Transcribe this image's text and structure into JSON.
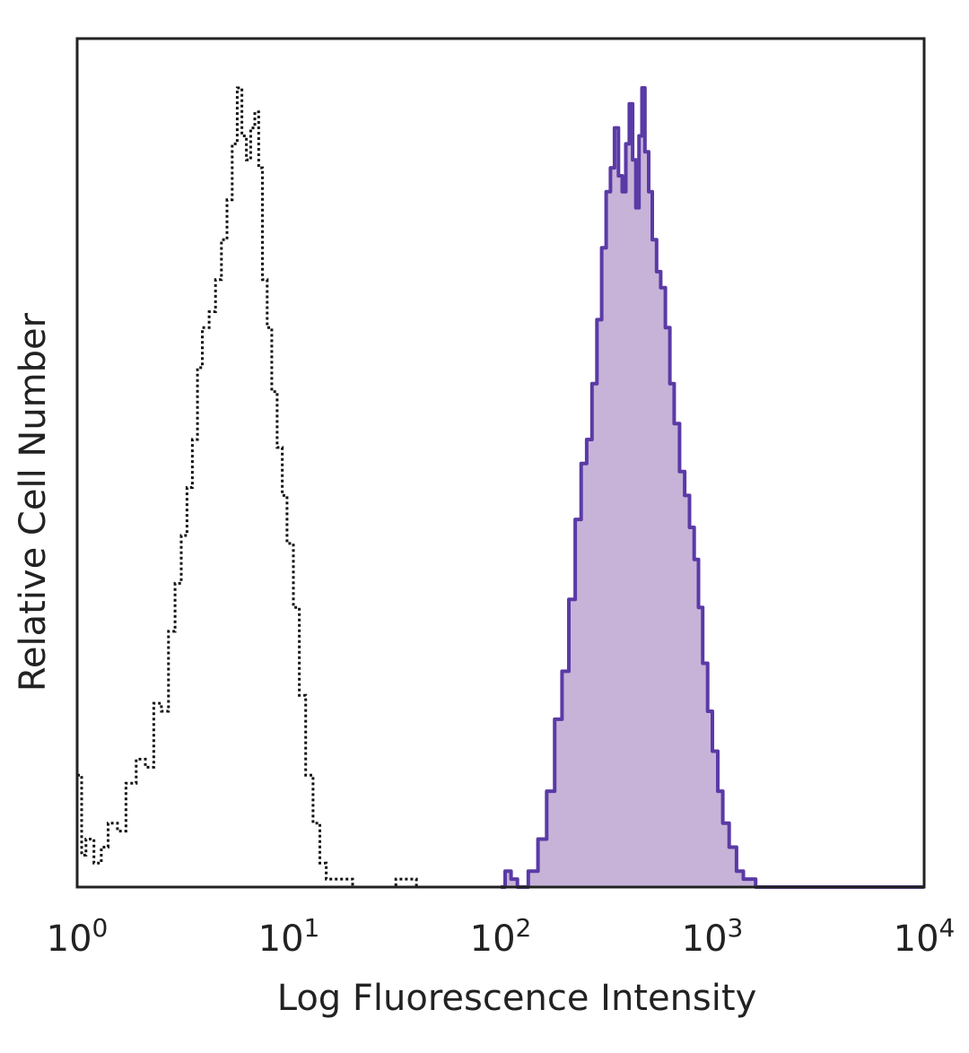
{
  "chart_data": {
    "type": "area",
    "title": "",
    "xlabel": "Log Fluorescence Intensity",
    "ylabel": "Relative Cell Number",
    "x_scale": "log",
    "xlim": [
      1,
      10000
    ],
    "ylim": [
      0,
      100
    ],
    "grid": false,
    "legend": "none",
    "x_ticks": [
      {
        "base": "10",
        "exp": "0",
        "value": 1
      },
      {
        "base": "10",
        "exp": "1",
        "value": 10
      },
      {
        "base": "10",
        "exp": "2",
        "value": 100
      },
      {
        "base": "10",
        "exp": "3",
        "value": 1000
      },
      {
        "base": "10",
        "exp": "4",
        "value": 10000
      }
    ],
    "series": [
      {
        "style": "dotted-outline",
        "color": "#111111",
        "points": [
          [
            1.0,
            14
          ],
          [
            1.05,
            4
          ],
          [
            1.1,
            6
          ],
          [
            1.2,
            3
          ],
          [
            1.3,
            5
          ],
          [
            1.4,
            8
          ],
          [
            1.55,
            7
          ],
          [
            1.7,
            13
          ],
          [
            1.9,
            16
          ],
          [
            2.1,
            15
          ],
          [
            2.3,
            23
          ],
          [
            2.5,
            22
          ],
          [
            2.7,
            32
          ],
          [
            2.9,
            38
          ],
          [
            3.1,
            44
          ],
          [
            3.3,
            50
          ],
          [
            3.5,
            56
          ],
          [
            3.7,
            65
          ],
          [
            3.9,
            70
          ],
          [
            4.2,
            72
          ],
          [
            4.5,
            76
          ],
          [
            4.8,
            81
          ],
          [
            5.1,
            86
          ],
          [
            5.4,
            93
          ],
          [
            5.7,
            100
          ],
          [
            6.0,
            94
          ],
          [
            6.3,
            91
          ],
          [
            6.6,
            95
          ],
          [
            6.9,
            97
          ],
          [
            7.2,
            90
          ],
          [
            7.5,
            76
          ],
          [
            7.9,
            70
          ],
          [
            8.3,
            62
          ],
          [
            8.8,
            55
          ],
          [
            9.3,
            49
          ],
          [
            9.8,
            43
          ],
          [
            10.5,
            35
          ],
          [
            11.2,
            24
          ],
          [
            12,
            14
          ],
          [
            13,
            8
          ],
          [
            14,
            3
          ],
          [
            15,
            1
          ],
          [
            17,
            1
          ],
          [
            20,
            0
          ],
          [
            25,
            0
          ],
          [
            32,
            1
          ],
          [
            40,
            0
          ],
          [
            60,
            0
          ],
          [
            80,
            0
          ],
          [
            100,
            0
          ]
        ]
      },
      {
        "style": "filled",
        "color": "#5a3aa6",
        "fill": "#c7b3d8",
        "points": [
          [
            100,
            0
          ],
          [
            105,
            2
          ],
          [
            112,
            1
          ],
          [
            120,
            0
          ],
          [
            135,
            2
          ],
          [
            150,
            6
          ],
          [
            165,
            12
          ],
          [
            180,
            21
          ],
          [
            195,
            27
          ],
          [
            210,
            36
          ],
          [
            225,
            46
          ],
          [
            240,
            53
          ],
          [
            255,
            56
          ],
          [
            270,
            63
          ],
          [
            285,
            71
          ],
          [
            300,
            80
          ],
          [
            315,
            87
          ],
          [
            330,
            90
          ],
          [
            345,
            95
          ],
          [
            360,
            89
          ],
          [
            375,
            87
          ],
          [
            390,
            93
          ],
          [
            405,
            98
          ],
          [
            420,
            91
          ],
          [
            435,
            85
          ],
          [
            450,
            94
          ],
          [
            465,
            100
          ],
          [
            480,
            92
          ],
          [
            500,
            87
          ],
          [
            520,
            81
          ],
          [
            545,
            77
          ],
          [
            570,
            75
          ],
          [
            600,
            70
          ],
          [
            630,
            63
          ],
          [
            660,
            58
          ],
          [
            700,
            52
          ],
          [
            740,
            49
          ],
          [
            780,
            45
          ],
          [
            820,
            41
          ],
          [
            860,
            35
          ],
          [
            900,
            28
          ],
          [
            950,
            22
          ],
          [
            1000,
            17
          ],
          [
            1060,
            12
          ],
          [
            1120,
            8
          ],
          [
            1200,
            5
          ],
          [
            1300,
            2
          ],
          [
            1400,
            1
          ],
          [
            1600,
            0
          ],
          [
            2000,
            0
          ],
          [
            10000,
            0
          ]
        ]
      }
    ]
  }
}
